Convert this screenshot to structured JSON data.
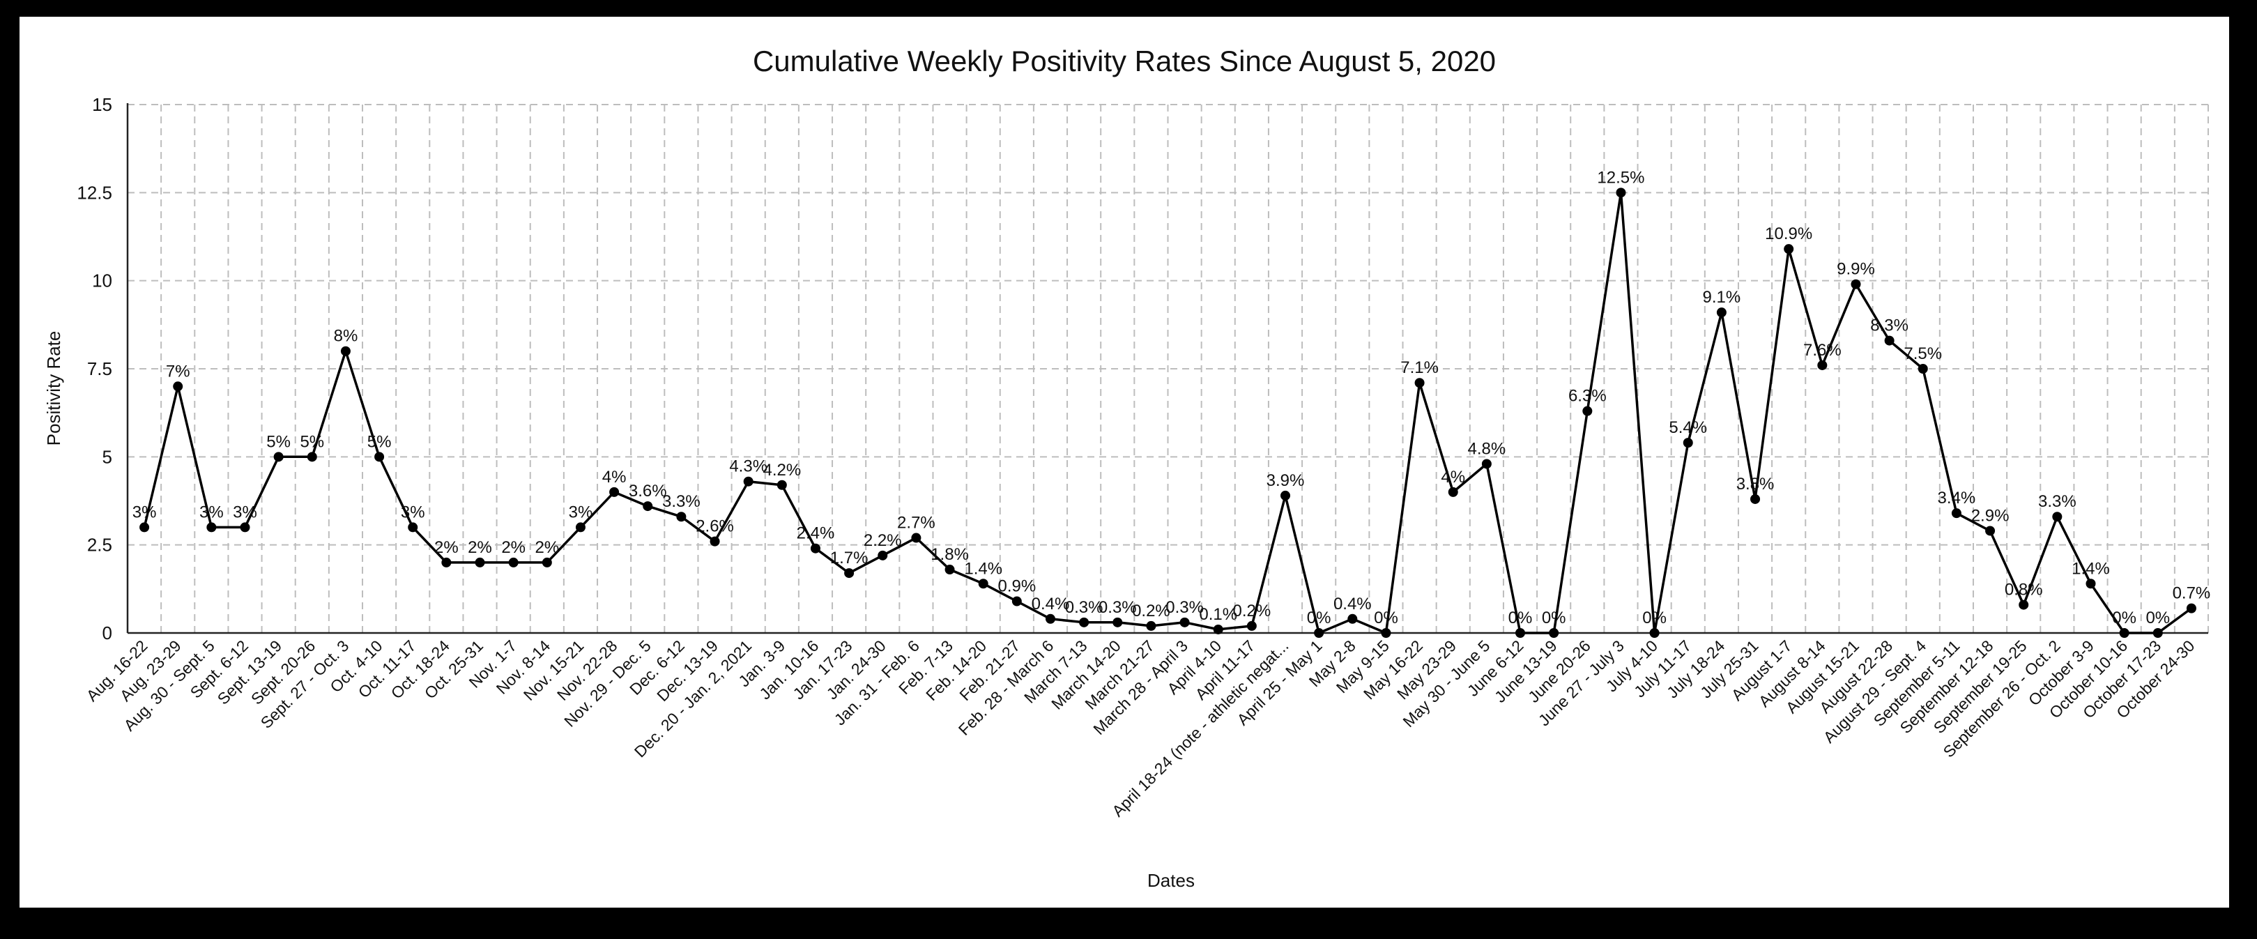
{
  "chart_data": {
    "type": "line",
    "title": "Cumulative Weekly Positivity Rates Since August 5, 2020",
    "xlabel": "Dates",
    "ylabel": "Positivity Rate",
    "ylim": [
      0,
      15
    ],
    "yticks": [
      "0",
      "2.5",
      "5",
      "7.5",
      "10",
      "12.5",
      "15"
    ],
    "grid": true,
    "colors": {
      "line": "#000000",
      "grid": "#bdbdbd",
      "frame": "#000000"
    },
    "categories": [
      "Aug. 16-22",
      "Aug. 23-29",
      "Aug. 30 - Sept. 5",
      "Sept. 6-12",
      "Sept. 13-19",
      "Sept. 20-26",
      "Sept. 27 - Oct. 3",
      "Oct. 4-10",
      "Oct. 11-17",
      "Oct. 18-24",
      "Oct. 25-31",
      "Nov. 1-7",
      "Nov. 8-14",
      "Nov. 15-21",
      "Nov. 22-28",
      "Nov. 29 - Dec. 5",
      "Dec. 6-12",
      "Dec. 13-19",
      "Dec. 20 - Jan. 2, 2021",
      "Jan. 3-9",
      "Jan. 10-16",
      "Jan. 17-23",
      "Jan. 24-30",
      "Jan. 31 - Feb. 6",
      "Feb. 7-13",
      "Feb. 14-20",
      "Feb. 21-27",
      "Feb. 28 - March 6",
      "March 7-13",
      "March 14-20",
      "March 21-27",
      "March 28 - April 3",
      "April 4-10",
      "April 11-17",
      "April 18-24 (note - athletic negat...",
      "April 25 - May 1",
      "May 2-8",
      "May 9-15",
      "May 16-22",
      "May 23-29",
      "May 30 - June 5",
      "June 6-12",
      "June 13-19",
      "June 20-26",
      "June 27 - July 3",
      "July 4-10",
      "July 11-17",
      "July 18-24",
      "July 25-31",
      "August 1-7",
      "August 8-14",
      "August 15-21",
      "August 22-28",
      "August 29 - Sept. 4",
      "September 5-11",
      "September 12-18",
      "September 19-25",
      "September 26 - Oct. 2",
      "October 3-9",
      "October 10-16",
      "October 17-23",
      "October 24-30"
    ],
    "series": [
      {
        "values": [
          3,
          7,
          3,
          3,
          5,
          5,
          8,
          5,
          3,
          2,
          2,
          2,
          2,
          3,
          4,
          3.6,
          3.3,
          2.6,
          4.3,
          4.2,
          2.4,
          1.7,
          2.2,
          2.7,
          1.8,
          1.4,
          0.9,
          0.4,
          0.3,
          0.3,
          0.2,
          0.3,
          0.1,
          0.2,
          3.9,
          0,
          0.4,
          0,
          7.1,
          4,
          4.8,
          0,
          0,
          6.3,
          12.5,
          0,
          5.4,
          9.1,
          3.8,
          10.9,
          7.6,
          9.9,
          8.3,
          7.5,
          3.4,
          2.9,
          0.8,
          3.3,
          1.4,
          0,
          0,
          0.7
        ],
        "labels": [
          "3%",
          "7%",
          "3%",
          "3%",
          "5%",
          "5%",
          "8%",
          "5%",
          "3%",
          "2%",
          "2%",
          "2%",
          "2%",
          "3%",
          "4%",
          "3.6%",
          "3.3%",
          "2.6%",
          "4.3%",
          "4.2%",
          "2.4%",
          "1.7%",
          "2.2%",
          "2.7%",
          "1.8%",
          "1.4%",
          "0.9%",
          "0.4%",
          "0.3%",
          "0.3%",
          "0.2%",
          "0.3%",
          "0.1%",
          "0.2%",
          "3.9%",
          "0%",
          "0.4%",
          "0%",
          "7.1%",
          "4%",
          "4.8%",
          "0%",
          "0%",
          "6.3%",
          "12.5%",
          "0%",
          "5.4%",
          "9.1%",
          "3.8%",
          "10.9%",
          "7.6%",
          "9.9%",
          "8.3%",
          "7.5%",
          "3.4%",
          "2.9%",
          "0.8%",
          "3.3%",
          "1.4%",
          "0%",
          "0%",
          "0.7%"
        ]
      }
    ]
  }
}
